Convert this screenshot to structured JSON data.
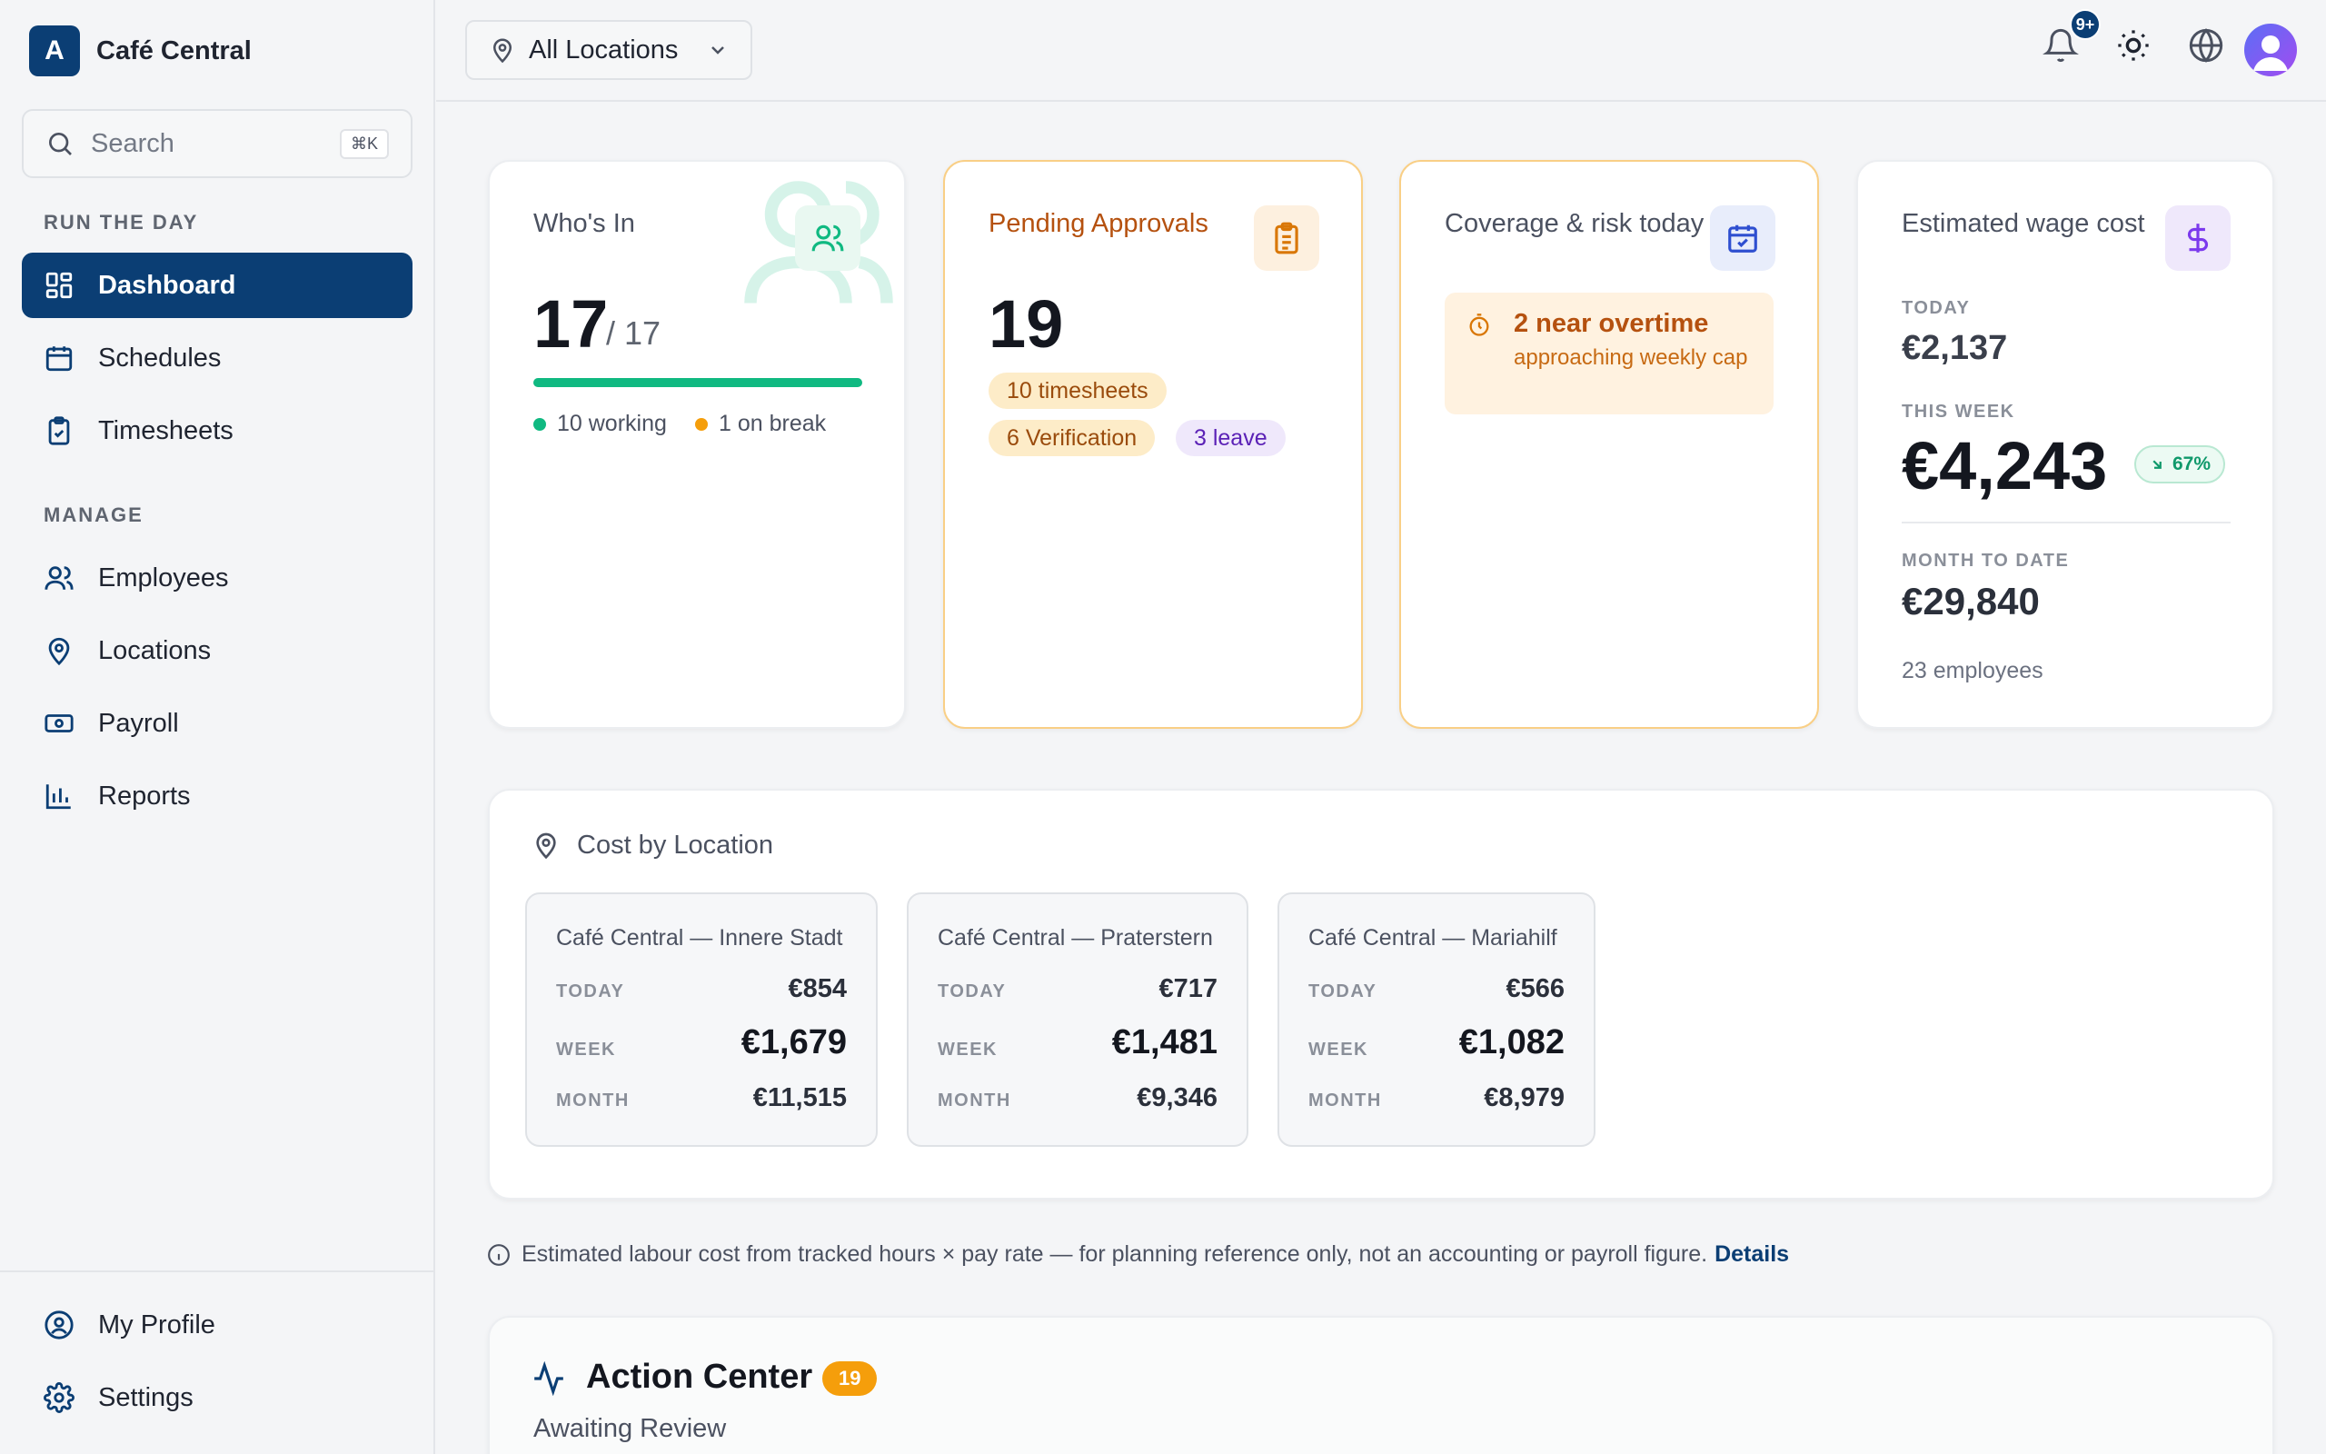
{
  "app": {
    "name": "Café Central",
    "logo_letter": "A"
  },
  "search": {
    "placeholder": "Search",
    "shortcut": "⌘K"
  },
  "sidebar": {
    "sections": [
      "RUN THE DAY",
      "MANAGE"
    ],
    "items": [
      {
        "label": "Dashboard",
        "icon": "dashboard-icon"
      },
      {
        "label": "Schedules",
        "icon": "calendar-icon"
      },
      {
        "label": "Timesheets",
        "icon": "clipboard-icon"
      },
      {
        "label": "Employees",
        "icon": "users-icon"
      },
      {
        "label": "Locations",
        "icon": "map-pin-icon"
      },
      {
        "label": "Payroll",
        "icon": "banknote-icon"
      },
      {
        "label": "Reports",
        "icon": "bar-chart-icon"
      }
    ],
    "footer_items": [
      {
        "label": "My Profile",
        "icon": "user-circle-icon"
      },
      {
        "label": "Settings",
        "icon": "gear-icon"
      }
    ]
  },
  "topbar": {
    "location_filter": "All Locations",
    "notifications_badge": "9+"
  },
  "whos_in": {
    "title": "Who's In",
    "present": "17",
    "total": "/ 17",
    "progress": 1.0,
    "working": "10 working",
    "on_break": "1 on break"
  },
  "pending": {
    "title": "Pending Approvals",
    "count": "19",
    "timesheets": "10 timesheets",
    "verification": "6 Verification",
    "leave": "3 leave"
  },
  "coverage": {
    "title": "Coverage & risk today",
    "alert_title": "2 near overtime",
    "alert_sub": "approaching weekly cap"
  },
  "wage": {
    "title": "Estimated wage cost",
    "today_label": "TODAY",
    "today_value": "€2,137",
    "week_label": "THIS WEEK",
    "week_value": "€4,243",
    "week_change": "67%",
    "month_label": "MONTH TO DATE",
    "month_value": "€29,840",
    "employees": "23 employees"
  },
  "cost_by_location": {
    "title": "Cost by Location",
    "row_labels": {
      "today": "TODAY",
      "week": "WEEK",
      "month": "MONTH"
    },
    "locations": [
      {
        "name": "Café Central — Innere Stadt",
        "today": "€854",
        "week": "€1,679",
        "month": "€11,515"
      },
      {
        "name": "Café Central — Praterstern",
        "today": "€717",
        "week": "€1,481",
        "month": "€9,346"
      },
      {
        "name": "Café Central — Mariahilf",
        "today": "€566",
        "week": "€1,082",
        "month": "€8,979"
      }
    ]
  },
  "disclaimer": {
    "text": "Estimated labour cost from tracked hours × pay rate — for planning reference only, not an accounting or payroll figure.",
    "link": "Details"
  },
  "action_center": {
    "title": "Action Center",
    "count": "19",
    "subtitle": "Awaiting Review"
  },
  "colors": {
    "brand": "#0b3e74",
    "green": "#10b981",
    "orange": "#f59e0b",
    "purple": "#7c3aed"
  }
}
